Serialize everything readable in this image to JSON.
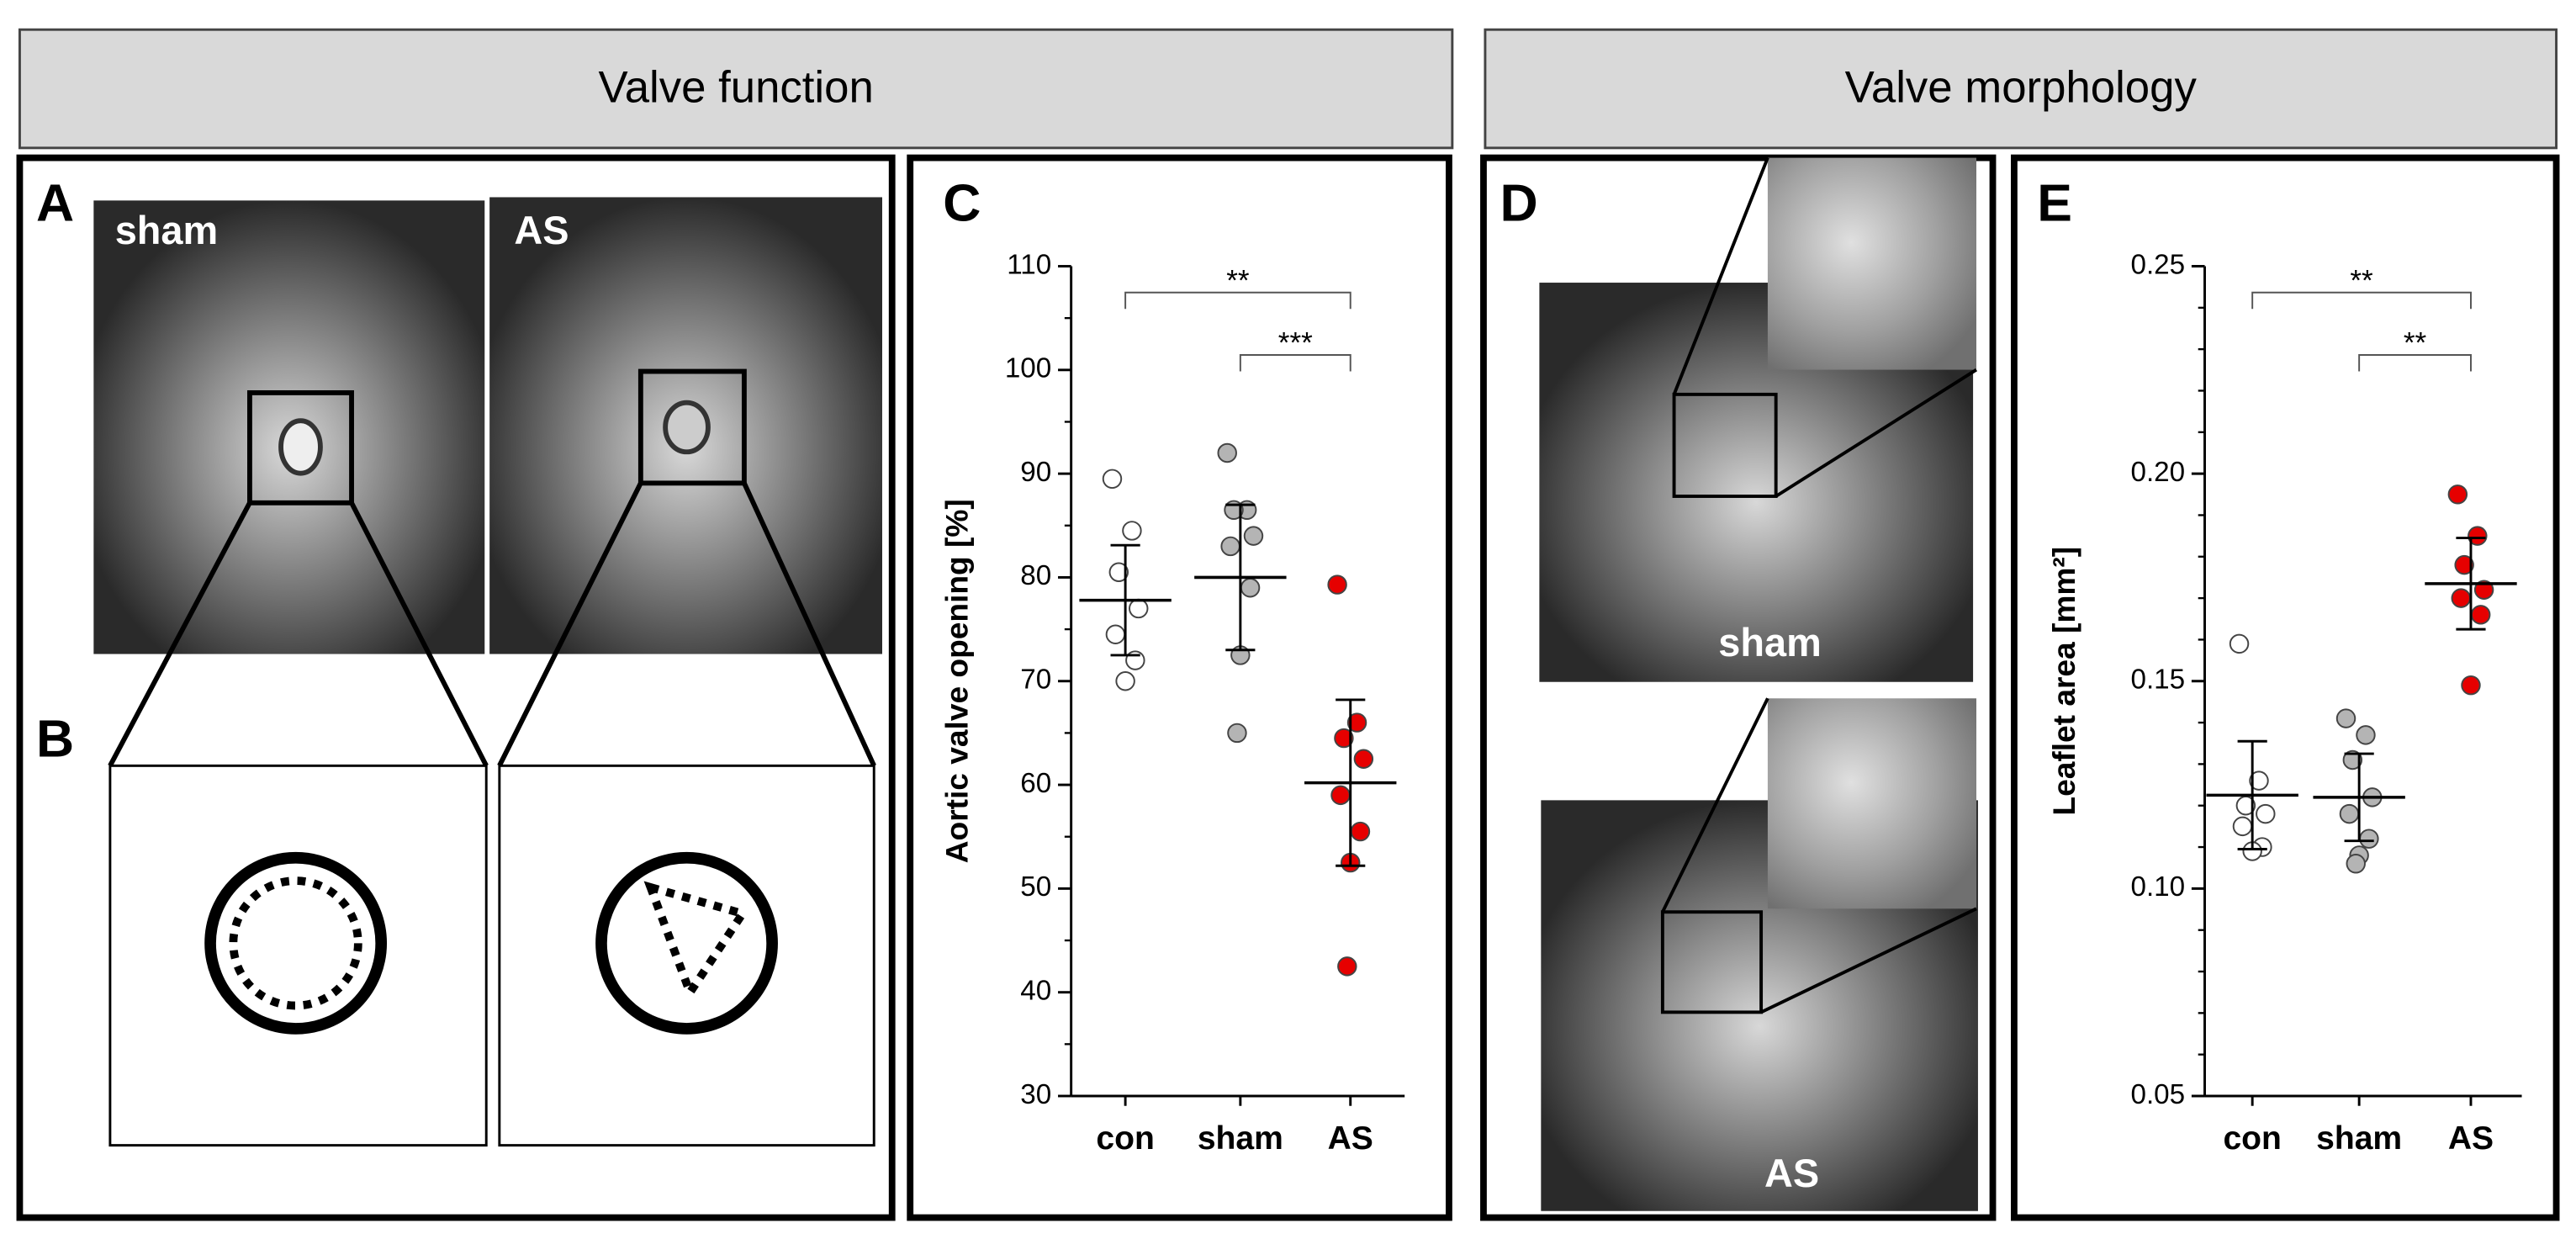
{
  "headers": [
    "Valve function",
    "Valve morphology"
  ],
  "panels": [
    "A",
    "B",
    "C",
    "D",
    "E"
  ],
  "image_labels": [
    "sham",
    "AS",
    "sham",
    "AS"
  ],
  "chart_data": [
    {
      "type": "strip",
      "ylabel": "Aortic valve opening [%]",
      "categories": [
        "con",
        "sham",
        "AS"
      ],
      "ylim": [
        30,
        110
      ],
      "yticks": [
        30,
        40,
        50,
        60,
        70,
        80,
        90,
        100,
        110
      ],
      "yminorticks": [
        35,
        45,
        55,
        65,
        75,
        85,
        95,
        105
      ],
      "series": [
        {
          "color": "#ffffff",
          "values": [
            89.5,
            84.5,
            80.5,
            77,
            74.5,
            72,
            70
          ],
          "mean": 77.8,
          "sd": 5.3
        },
        {
          "color": "#b4b4b4",
          "values": [
            92,
            86.5,
            86.5,
            84,
            83,
            79,
            72.5,
            65
          ],
          "mean": 80,
          "sd": 7
        },
        {
          "color": "#e60000",
          "values": [
            79.3,
            66,
            64.5,
            62.5,
            59,
            55.5,
            52.5,
            42.5
          ],
          "mean": 60.2,
          "sd": 8
        }
      ],
      "brackets": [
        {
          "label": "**",
          "from": "con",
          "to": "AS"
        },
        {
          "label": "***",
          "from": "sham",
          "to": "AS"
        }
      ]
    },
    {
      "type": "strip",
      "ylabel": "Leaflet area [mm²]",
      "categories": [
        "con",
        "sham",
        "AS"
      ],
      "ylim": [
        0.05,
        0.25
      ],
      "yticks": [
        0.05,
        {
          "value": 0.1,
          "label": "0.10"
        },
        0.15,
        {
          "value": 0.2,
          "label": "0.20"
        },
        0.25
      ],
      "yminorticks": [
        0.06,
        0.07,
        0.08,
        0.09,
        0.11,
        0.12,
        0.13,
        0.14,
        0.16,
        0.17,
        0.18,
        0.19,
        0.21,
        0.22,
        0.23,
        0.24
      ],
      "series": [
        {
          "color": "#ffffff",
          "values": [
            0.159,
            0.126,
            0.12,
            0.118,
            0.115,
            0.11,
            0.109
          ],
          "mean": 0.1225,
          "sd": 0.013
        },
        {
          "color": "#b4b4b4",
          "values": [
            0.141,
            0.137,
            0.131,
            0.122,
            0.118,
            0.112,
            0.108,
            0.106
          ],
          "mean": 0.122,
          "sd": 0.0105
        },
        {
          "color": "#e60000",
          "values": [
            0.195,
            0.185,
            0.178,
            0.172,
            0.17,
            0.166,
            0.149
          ],
          "mean": 0.1735,
          "sd": 0.011
        }
      ],
      "brackets": [
        {
          "label": "**",
          "from": "con",
          "to": "AS"
        },
        {
          "label": "**",
          "from": "sham",
          "to": "AS"
        }
      ]
    }
  ]
}
